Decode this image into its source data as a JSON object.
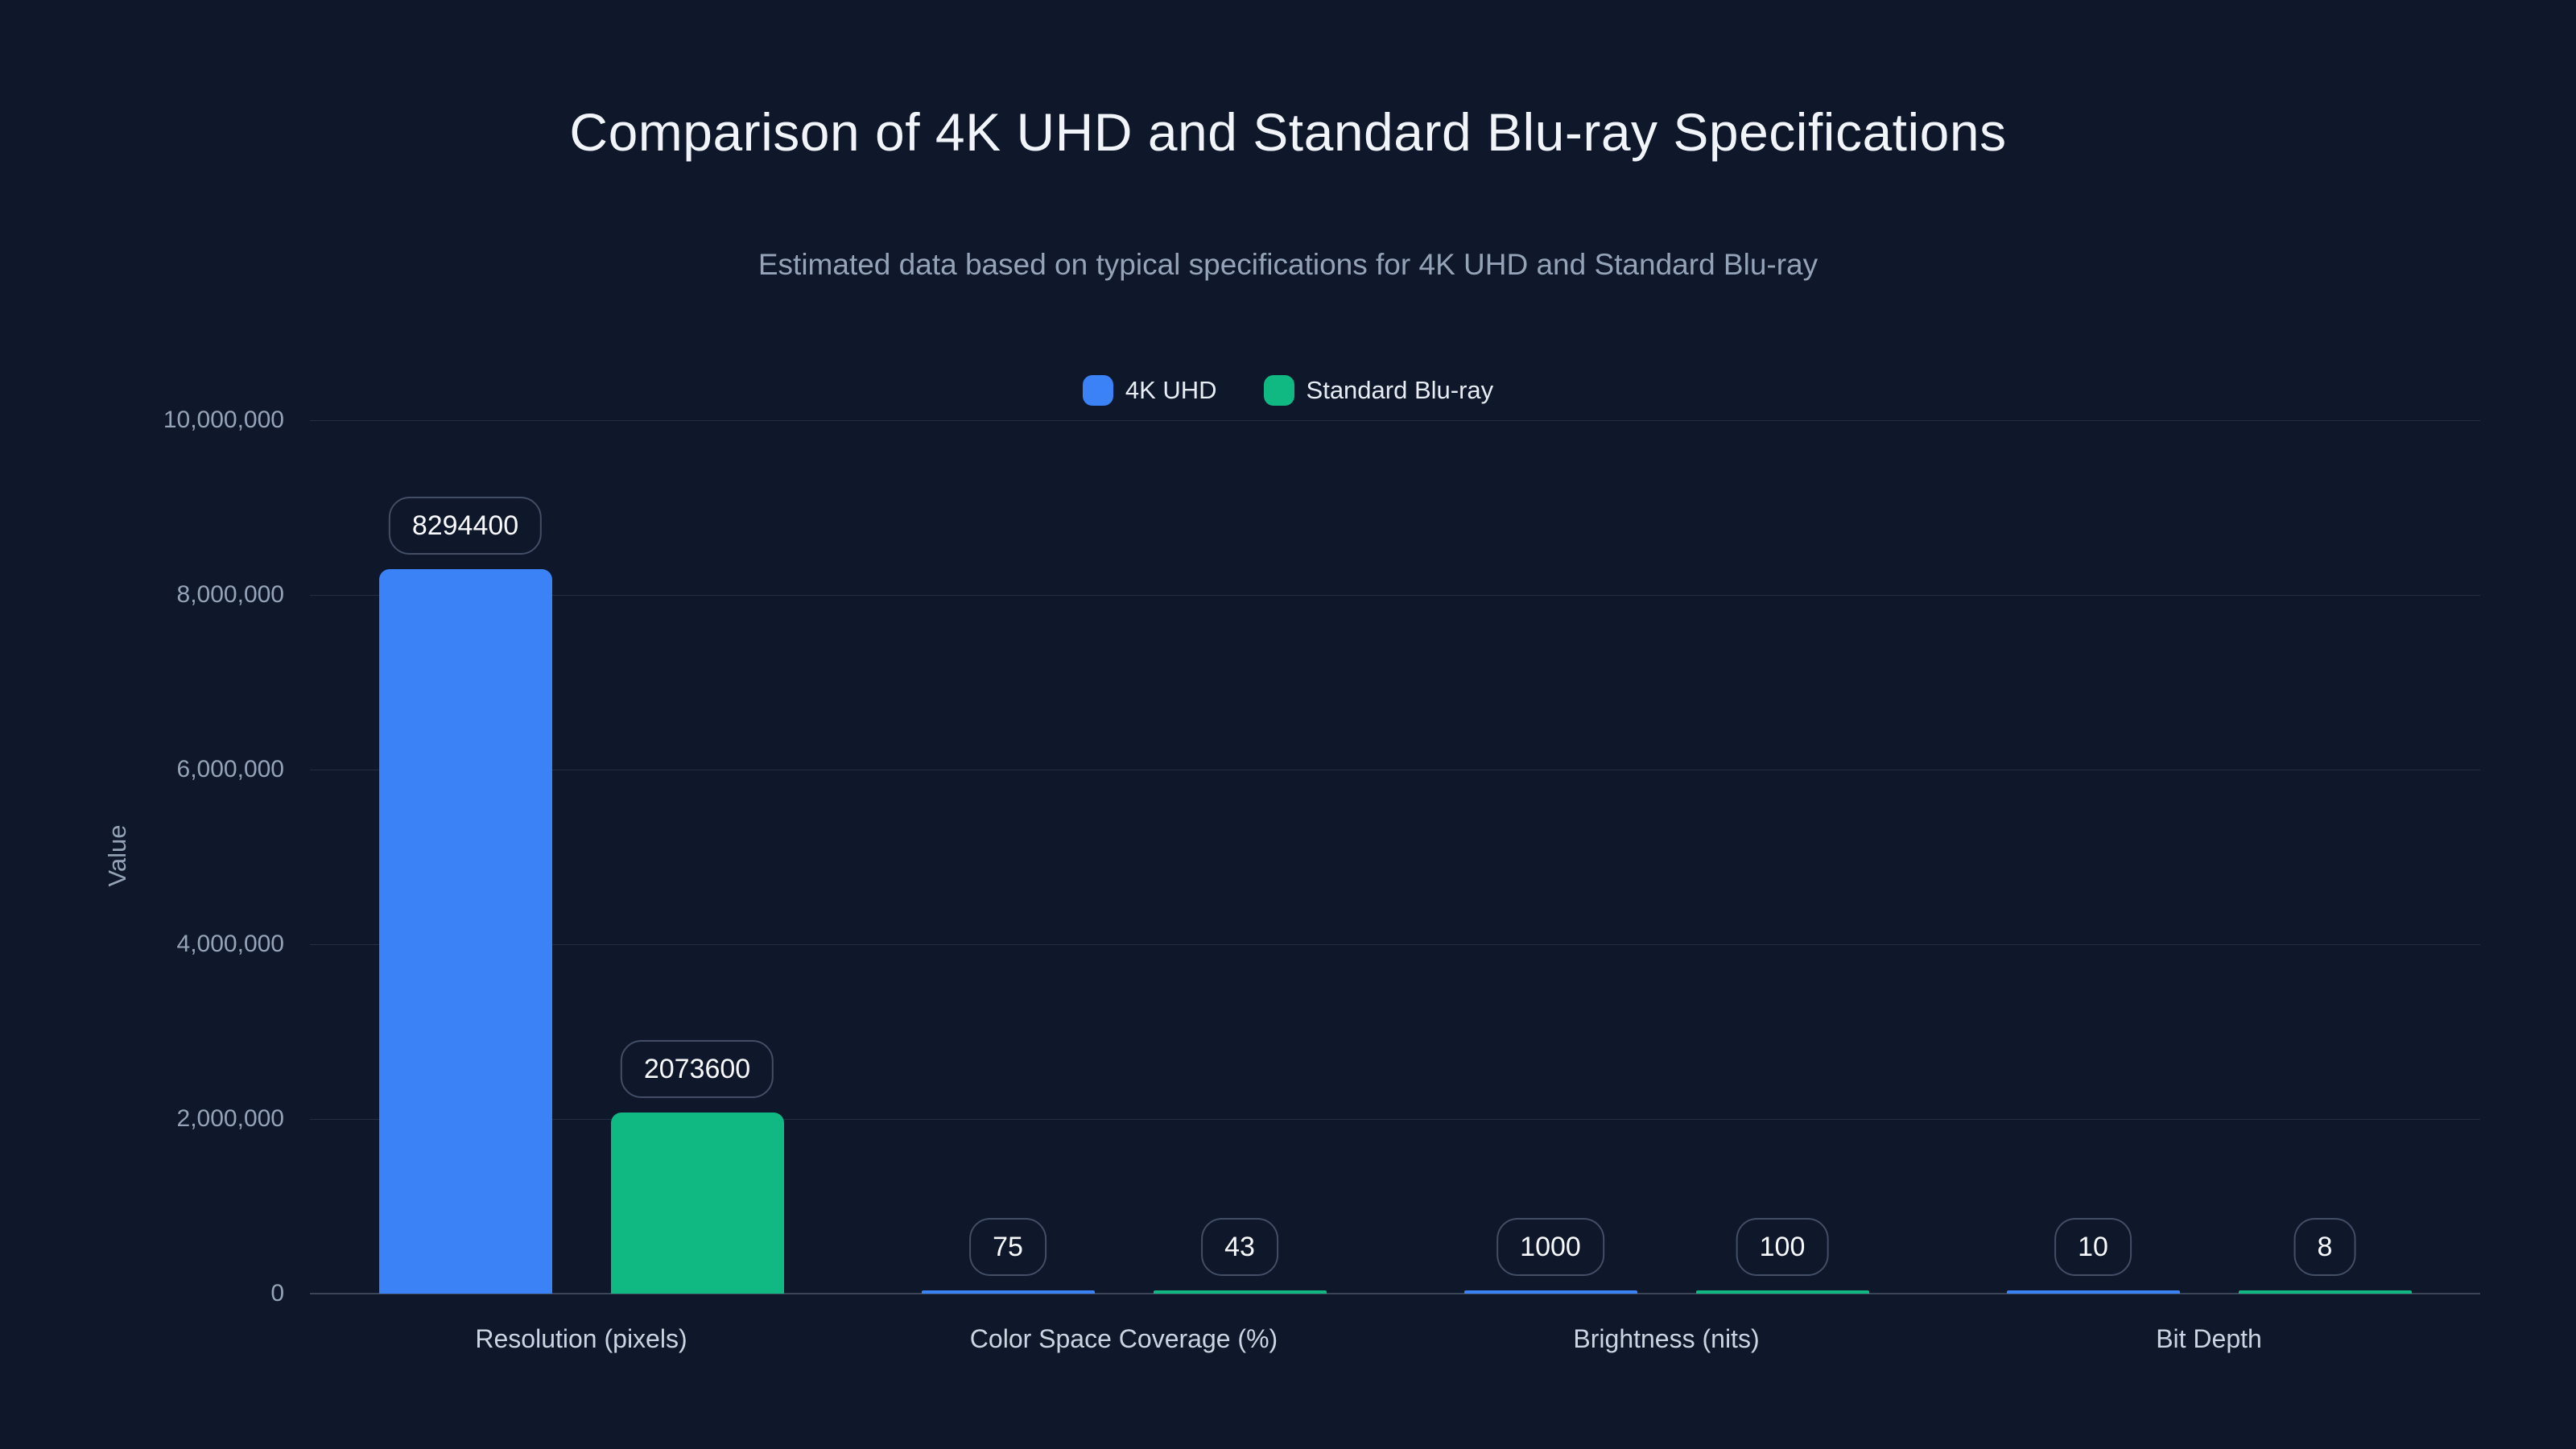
{
  "theme": {
    "background": "#0f172a",
    "title_color": "#f1f5f9",
    "subtitle_color": "#94a3b8",
    "axis_text_color": "#94a3b8",
    "category_text_color": "#cbd5e1",
    "grid_color": "rgba(148,163,184,0.16)",
    "axis_line_color": "#3a4558",
    "pill_border_color": "#414e66",
    "pill_text_color": "#f7f9fc"
  },
  "chart_data": {
    "type": "bar",
    "title": "Comparison of 4K UHD and Standard Blu-ray Specifications",
    "subtitle": "Estimated data based on typical specifications for 4K UHD and Standard Blu-ray",
    "categories": [
      "Resolution (pixels)",
      "Color Space Coverage (%)",
      "Brightness (nits)",
      "Bit Depth"
    ],
    "series": [
      {
        "name": "4K UHD",
        "color": "#3b82f6",
        "values": [
          8294400,
          75,
          1000,
          10
        ],
        "labels": [
          "8294400",
          "75",
          "1000",
          "10"
        ]
      },
      {
        "name": "Standard Blu-ray",
        "color": "#10b981",
        "values": [
          2073600,
          43,
          100,
          8
        ],
        "labels": [
          "2073600",
          "43",
          "100",
          "8"
        ]
      }
    ],
    "xlabel": "",
    "ylabel": "Value",
    "ylim": [
      0,
      10000000
    ],
    "yticks": [
      {
        "value": 0,
        "label": "0"
      },
      {
        "value": 2000000,
        "label": "2,000,000"
      },
      {
        "value": 4000000,
        "label": "4,000,000"
      },
      {
        "value": 6000000,
        "label": "6,000,000"
      },
      {
        "value": 8000000,
        "label": "8,000,000"
      },
      {
        "value": 10000000,
        "label": "10,000,000"
      }
    ],
    "grid": true,
    "legend_position": "top-center",
    "value_labels_shown": true
  }
}
